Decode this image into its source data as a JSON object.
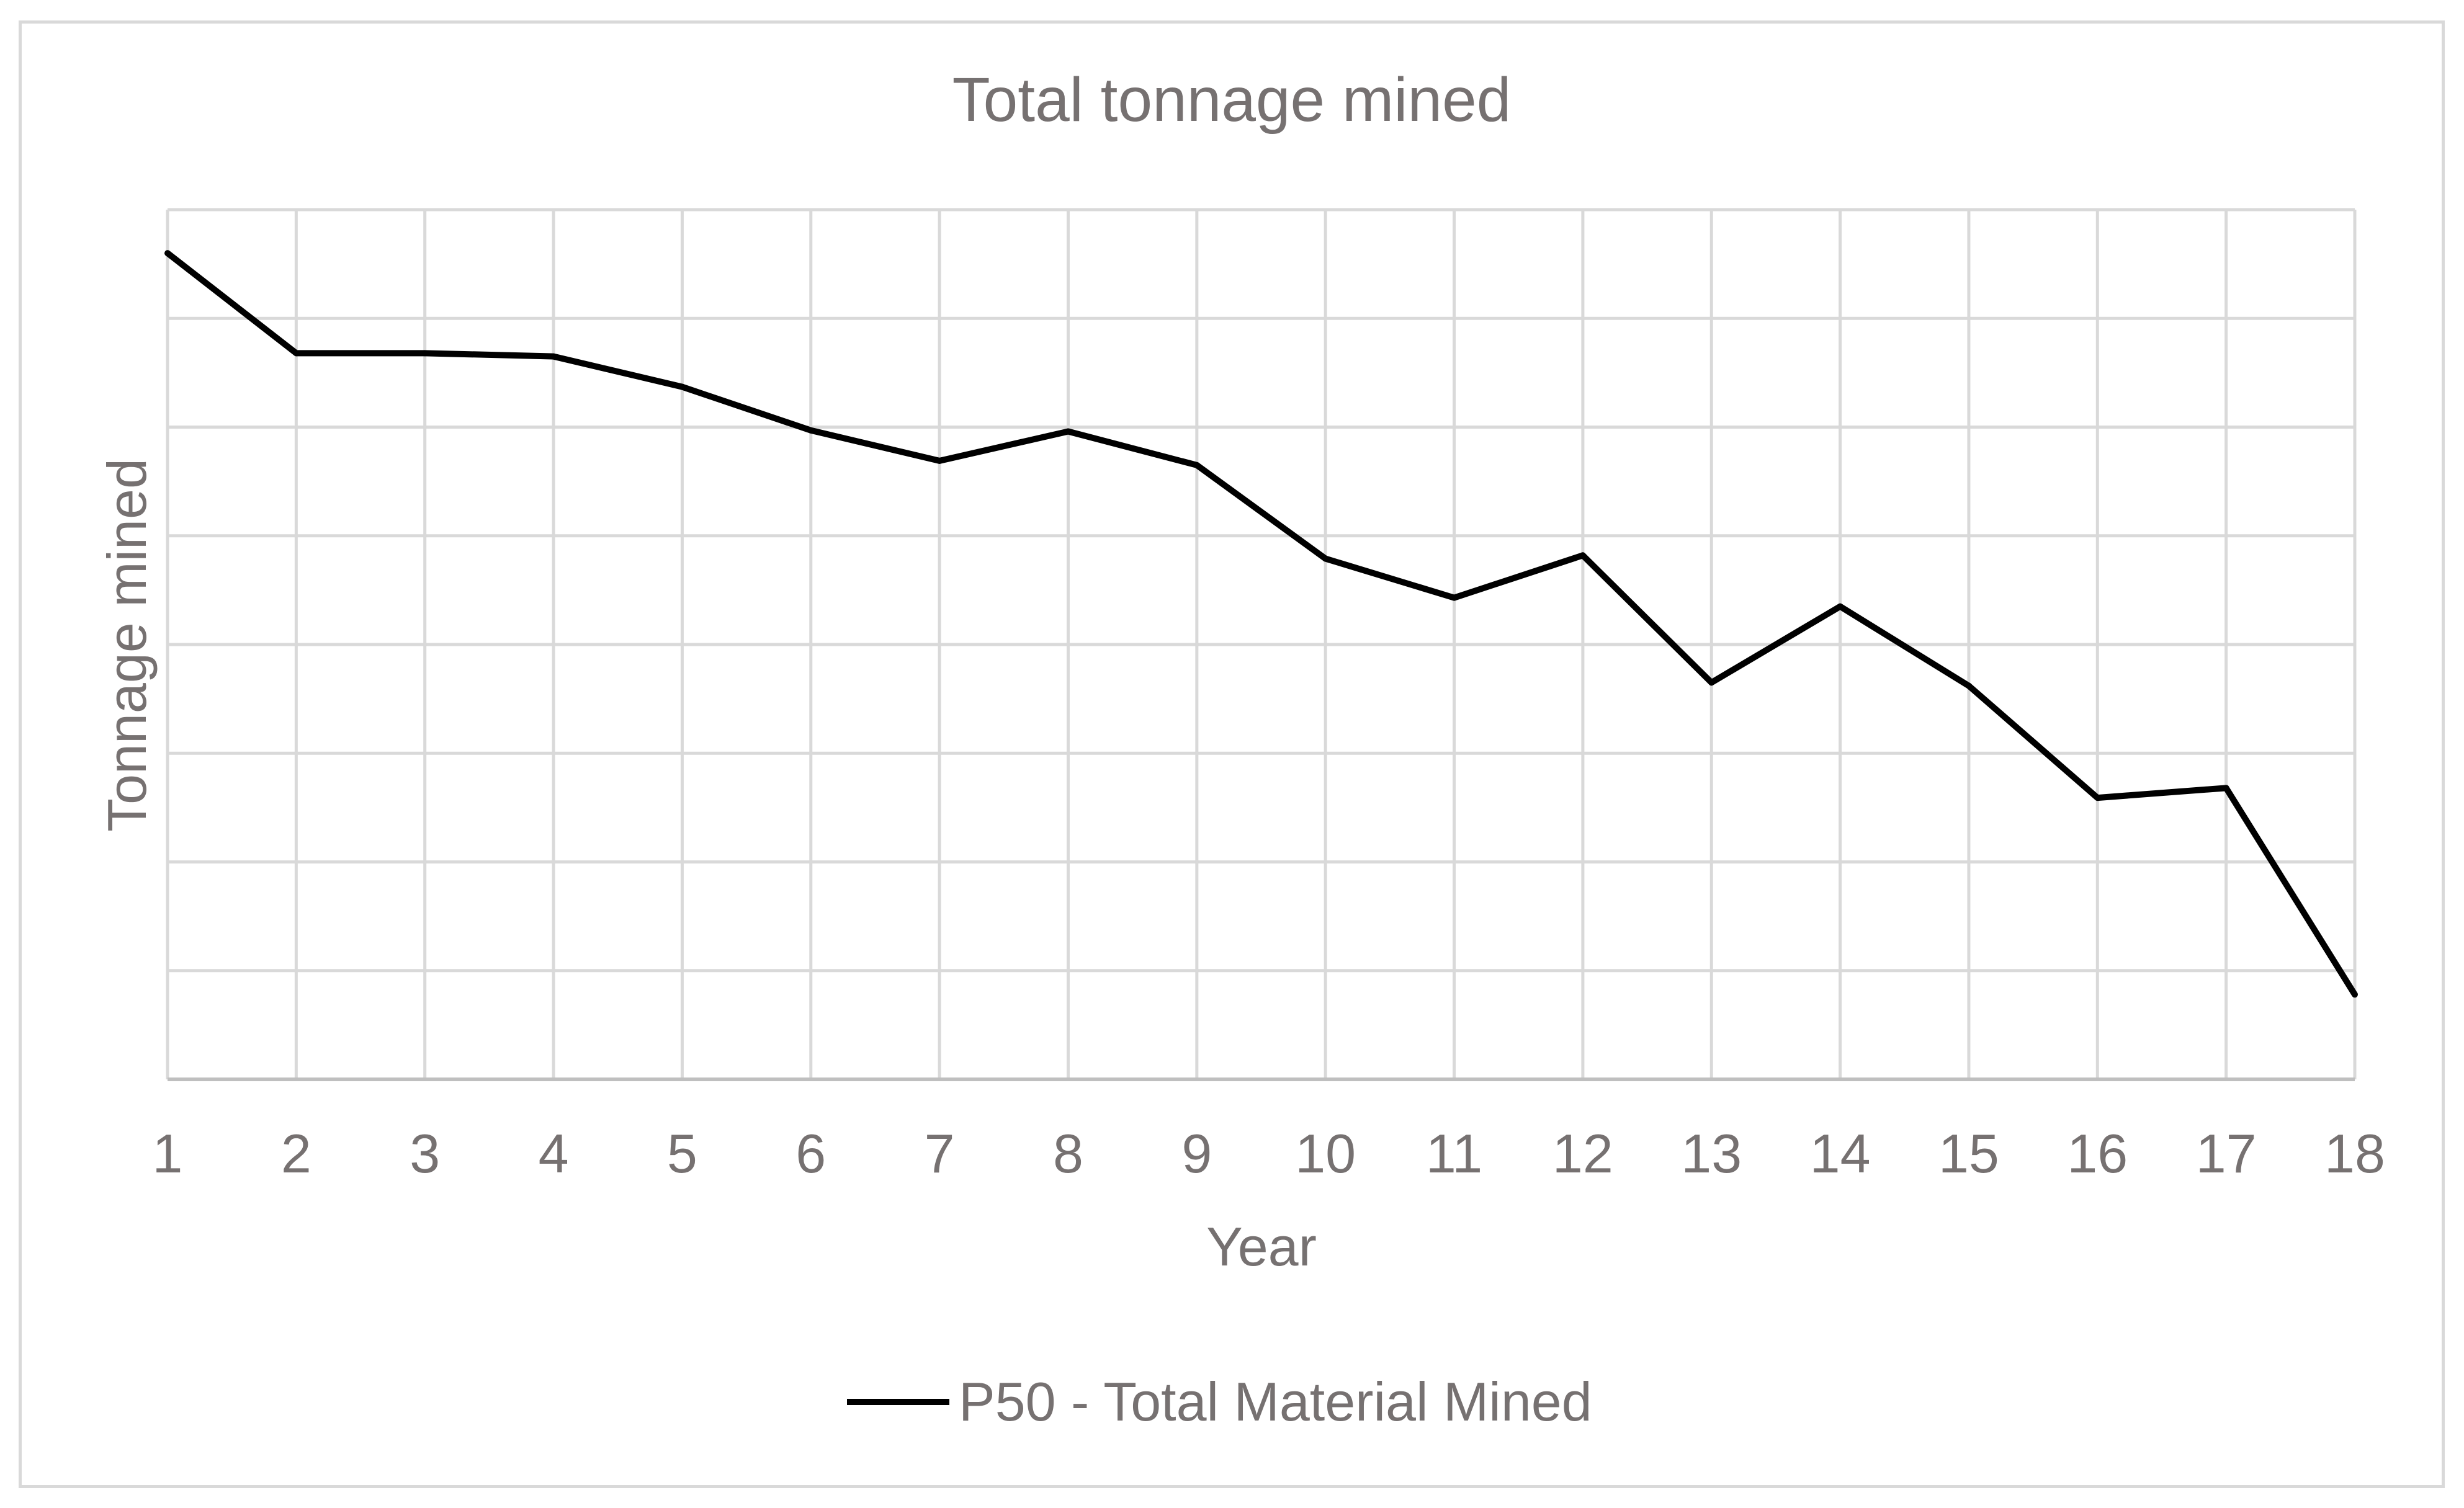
{
  "chart_data": {
    "type": "line",
    "title": "Total tonnage mined",
    "xlabel": "Year",
    "ylabel": "Tonnage mined",
    "categories": [
      "1",
      "2",
      "3",
      "4",
      "5",
      "6",
      "7",
      "8",
      "9",
      "10",
      "11",
      "12",
      "13",
      "14",
      "15",
      "16",
      "17",
      "18"
    ],
    "series": [
      {
        "name": "P50 - Total Material Mined",
        "values": [
          7.6,
          6.68,
          6.68,
          6.65,
          6.37,
          5.97,
          5.69,
          5.96,
          5.65,
          4.79,
          4.43,
          4.82,
          3.65,
          4.35,
          3.62,
          2.59,
          2.68,
          0.78
        ],
        "color": "#000000"
      }
    ],
    "ylim": [
      0,
      8
    ],
    "y_gridlines": 8,
    "y_tick_labels_shown": false,
    "grid": true,
    "legend_position": "bottom"
  }
}
